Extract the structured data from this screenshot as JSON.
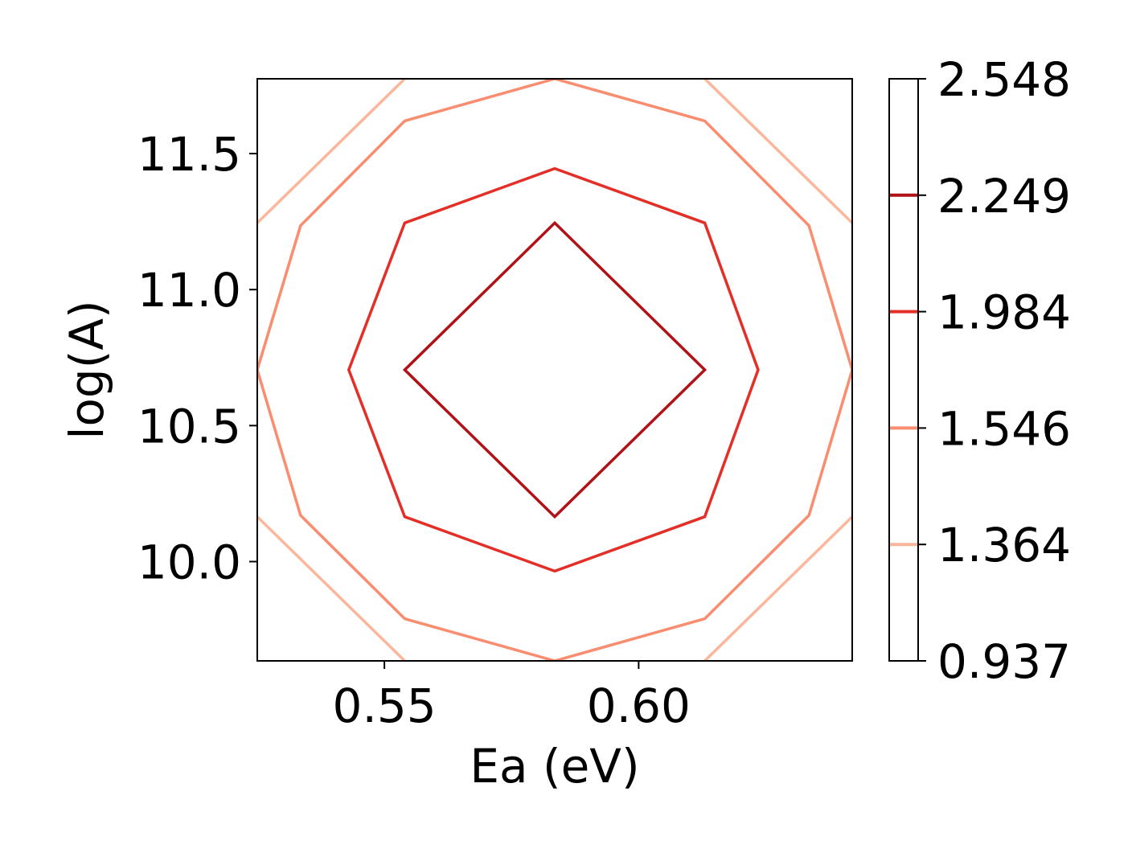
{
  "chart_data": {
    "type": "contour",
    "xlabel": "Ea (eV)",
    "ylabel": "log(A)",
    "xlim": [
      0.525,
      0.642
    ],
    "ylim": [
      9.635,
      11.775
    ],
    "x_ticks": [
      0.55,
      0.6
    ],
    "x_tick_labels": [
      "0.55",
      "0.60"
    ],
    "y_ticks": [
      10.0,
      10.5,
      11.0,
      11.5
    ],
    "y_tick_labels": [
      "10.0",
      "10.5",
      "11.0",
      "11.5"
    ],
    "grid": false,
    "colorbar": {
      "orientation": "vertical",
      "position": "right",
      "ticks": [
        0.937,
        1.364,
        1.546,
        1.984,
        2.249,
        2.548
      ],
      "tick_labels": [
        "0.937",
        "1.364",
        "1.546",
        "1.984",
        "2.249",
        "2.548"
      ]
    },
    "levels": [
      {
        "level": 1.364,
        "color": "#fcb69b",
        "segments": [
          [
            [
              0.525,
              11.245
            ],
            [
              0.554,
              11.775
            ]
          ],
          [
            [
              0.613,
              11.775
            ],
            [
              0.642,
              11.245
            ]
          ],
          [
            [
              0.525,
              10.165
            ],
            [
              0.554,
              9.635
            ]
          ],
          [
            [
              0.613,
              9.635
            ],
            [
              0.642,
              10.165
            ]
          ]
        ]
      },
      {
        "level": 1.546,
        "color": "#fa8c6f",
        "closed": true,
        "points": [
          [
            0.5835,
            11.775
          ],
          [
            0.613,
            11.62
          ],
          [
            0.6335,
            11.235
          ],
          [
            0.642,
            10.705
          ],
          [
            0.6335,
            10.17
          ],
          [
            0.613,
            9.79
          ],
          [
            0.5835,
            9.635
          ],
          [
            0.554,
            9.79
          ],
          [
            0.5335,
            10.17
          ],
          [
            0.525,
            10.705
          ],
          [
            0.5335,
            11.235
          ],
          [
            0.554,
            11.62
          ]
        ]
      },
      {
        "level": 1.984,
        "color": "#e32f27",
        "closed": true,
        "points": [
          [
            0.5835,
            11.445
          ],
          [
            0.613,
            11.245
          ],
          [
            0.6235,
            10.705
          ],
          [
            0.613,
            10.165
          ],
          [
            0.5835,
            9.965
          ],
          [
            0.554,
            10.165
          ],
          [
            0.543,
            10.705
          ],
          [
            0.554,
            11.245
          ]
        ]
      },
      {
        "level": 2.249,
        "color": "#b11218",
        "closed": true,
        "points": [
          [
            0.5835,
            11.245
          ],
          [
            0.613,
            10.705
          ],
          [
            0.5835,
            10.165
          ],
          [
            0.554,
            10.705
          ]
        ]
      }
    ]
  }
}
